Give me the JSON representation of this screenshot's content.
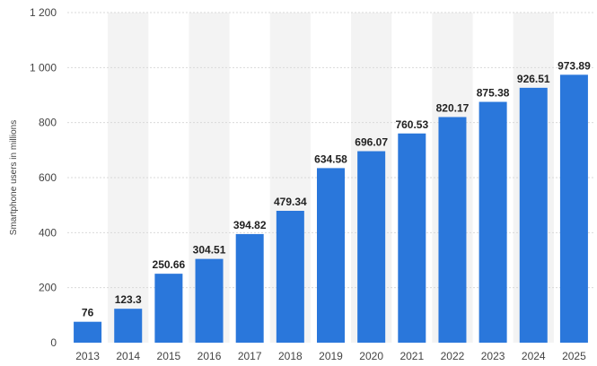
{
  "chart_data": {
    "type": "bar",
    "title": "",
    "xlabel": "",
    "ylabel": "Smartphone users in millions",
    "categories": [
      "2013",
      "2014",
      "2015",
      "2016",
      "2017",
      "2018",
      "2019",
      "2020",
      "2021",
      "2022",
      "2023",
      "2024",
      "2025"
    ],
    "values": [
      76,
      123.3,
      250.66,
      304.51,
      394.82,
      479.34,
      634.58,
      696.07,
      760.53,
      820.17,
      875.38,
      926.51,
      973.89
    ],
    "value_labels": [
      "76",
      "123.3",
      "250.66",
      "304.51",
      "394.82",
      "479.34",
      "634.58",
      "696.07",
      "760.53",
      "820.17",
      "875.38",
      "926.51",
      "973.89"
    ],
    "ylim": [
      0,
      1200
    ],
    "yticks": [
      0,
      200,
      400,
      600,
      800,
      1000,
      1200
    ],
    "ytick_labels": [
      "0",
      "200",
      "400",
      "600",
      "800",
      "1 000",
      "1 200"
    ],
    "grid": "horizontal-dashed",
    "alternating_column_bands": true,
    "colors": {
      "bar": "#2a77db",
      "band": "#f3f3f3",
      "grid": "#d9d9d9"
    }
  }
}
